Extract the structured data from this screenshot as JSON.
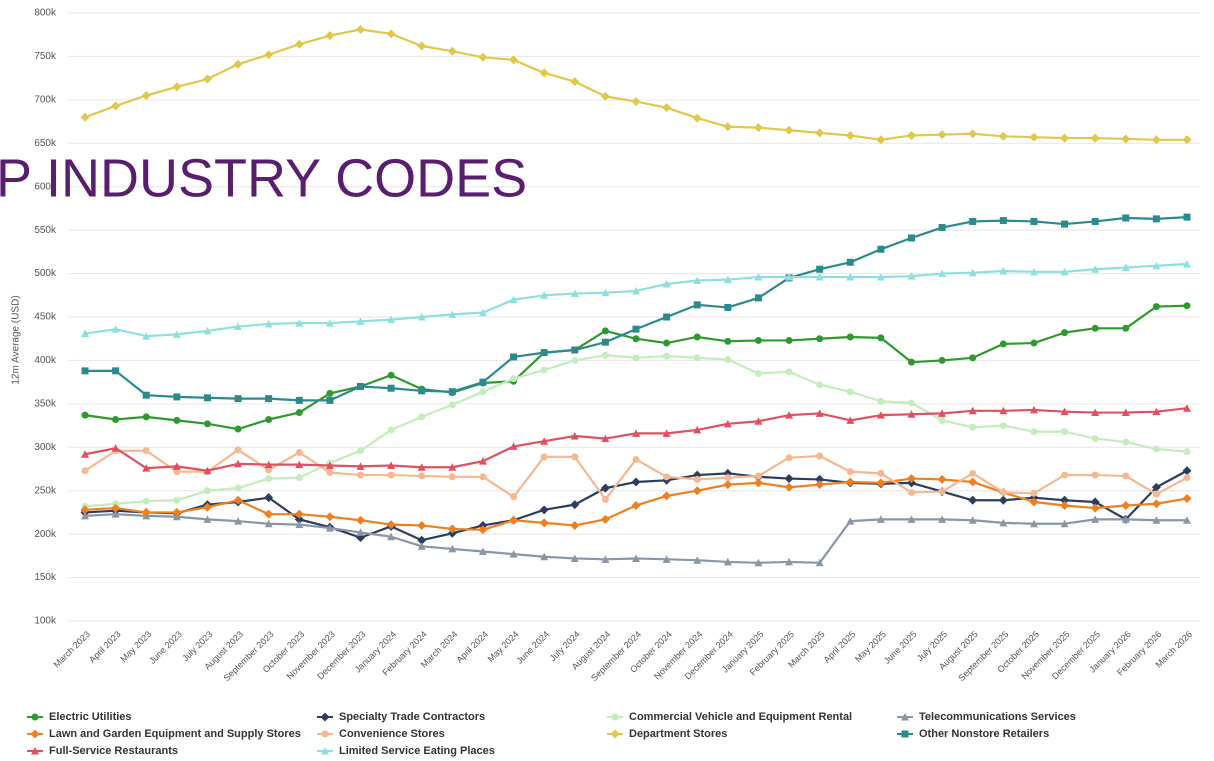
{
  "chart_data": {
    "type": "line",
    "overlay_text": "P INDUSTRY CODES",
    "y_axis_label": "12m Average (USD)",
    "categories": [
      "March 2023",
      "April 2023",
      "May 2023",
      "June 2023",
      "July 2023",
      "August 2023",
      "September 2023",
      "October 2023",
      "November 2023",
      "December 2023",
      "January 2024",
      "February 2024",
      "March 2024",
      "April 2024",
      "May 2024",
      "June 2024",
      "July 2024",
      "August 2024",
      "September 2024",
      "October 2024",
      "November 2024",
      "December 2024",
      "January 2025",
      "February 2025",
      "March 2025",
      "April 2025",
      "May 2025",
      "June 2025",
      "July 2025",
      "August 2025",
      "September 2025",
      "October 2025",
      "November 2025",
      "December 2025",
      "January 2026",
      "February 2026",
      "March 2026"
    ],
    "ylim": [
      100000,
      800000
    ],
    "yticks": [
      {
        "value": 100000,
        "label": "100k"
      },
      {
        "value": 150000,
        "label": "150k"
      },
      {
        "value": 200000,
        "label": "200k"
      },
      {
        "value": 250000,
        "label": "250k"
      },
      {
        "value": 300000,
        "label": "300k"
      },
      {
        "value": 350000,
        "label": "350k"
      },
      {
        "value": 400000,
        "label": "400k"
      },
      {
        "value": 450000,
        "label": "450k"
      },
      {
        "value": 500000,
        "label": "500k"
      },
      {
        "value": 550000,
        "label": "550k"
      },
      {
        "value": 600000,
        "label": "600k"
      },
      {
        "value": 650000,
        "label": "650k"
      },
      {
        "value": 700000,
        "label": "700k"
      },
      {
        "value": 750000,
        "label": "750k"
      },
      {
        "value": 800000,
        "label": "800k"
      }
    ],
    "grid": true,
    "legend": "bottom",
    "series": [
      {
        "name": "Electric Utilities",
        "color": "#2e9a2e",
        "marker": "circle",
        "values": [
          337000,
          332000,
          335000,
          331000,
          327000,
          321000,
          332000,
          340000,
          362000,
          370000,
          383000,
          367000,
          363000,
          374000,
          376000,
          409000,
          412000,
          434000,
          425000,
          420000,
          427000,
          422000,
          423000,
          423000,
          425000,
          427000,
          426000,
          398000,
          400000,
          403000,
          419000,
          420000,
          432000,
          437000,
          437000,
          462000,
          463000
        ]
      },
      {
        "name": "Specialty Trade Contractors",
        "color": "#2c3e60",
        "marker": "diamond",
        "values": [
          225000,
          227000,
          225000,
          224000,
          234000,
          237000,
          242000,
          217000,
          208000,
          196000,
          209000,
          193000,
          201000,
          210000,
          216000,
          228000,
          234000,
          253000,
          260000,
          262000,
          268000,
          270000,
          266000,
          264000,
          263000,
          259000,
          258000,
          259000,
          249000,
          239000,
          239000,
          242000,
          239000,
          237000,
          217000,
          254000,
          273000
        ]
      },
      {
        "name": "Commercial Vehicle and Equipment Rental",
        "color": "#c4ecbc",
        "marker": "circle",
        "values": [
          232000,
          235000,
          238000,
          239000,
          250000,
          253000,
          264000,
          265000,
          282000,
          296000,
          320000,
          335000,
          349000,
          364000,
          379000,
          389000,
          400000,
          406000,
          403000,
          405000,
          403000,
          401000,
          385000,
          387000,
          372000,
          364000,
          353000,
          351000,
          331000,
          323000,
          325000,
          318000,
          318000,
          310000,
          306000,
          298000,
          295000
        ]
      },
      {
        "name": "Telecommunications Services",
        "color": "#8896a8",
        "marker": "triangle",
        "values": [
          221000,
          223000,
          221000,
          220000,
          217000,
          215000,
          212000,
          211000,
          207000,
          202000,
          197000,
          186000,
          183000,
          180000,
          177000,
          174000,
          172000,
          171000,
          172000,
          171000,
          170000,
          168000,
          167000,
          168000,
          167000,
          215000,
          217000,
          217000,
          217000,
          216000,
          213000,
          212000,
          212000,
          217000,
          217000,
          216000,
          216000
        ]
      },
      {
        "name": "Lawn and Garden Equipment and Supply Stores",
        "color": "#f07f20",
        "marker": "diamond",
        "values": [
          228000,
          230000,
          225000,
          225000,
          231000,
          239000,
          223000,
          223000,
          220000,
          216000,
          211000,
          210000,
          206000,
          205000,
          216000,
          213000,
          210000,
          217000,
          233000,
          244000,
          250000,
          257000,
          259000,
          254000,
          257000,
          260000,
          259000,
          264000,
          263000,
          260000,
          248000,
          237000,
          233000,
          230000,
          233000,
          235000,
          241000
        ]
      },
      {
        "name": "Convenience Stores",
        "color": "#f5b890",
        "marker": "circle",
        "values": [
          273000,
          296000,
          296000,
          272000,
          272000,
          297000,
          274000,
          294000,
          271000,
          268000,
          268000,
          267000,
          266000,
          266000,
          243000,
          289000,
          289000,
          240000,
          286000,
          266000,
          263000,
          265000,
          267000,
          288000,
          290000,
          272000,
          270000,
          248000,
          249000,
          270000,
          248000,
          247000,
          268000,
          268000,
          267000,
          246000,
          265000
        ]
      },
      {
        "name": "Department Stores",
        "color": "#e0c84a",
        "marker": "diamond",
        "values": [
          680000,
          693000,
          705000,
          715000,
          724000,
          741000,
          752000,
          764000,
          774000,
          781000,
          776000,
          762000,
          756000,
          749000,
          746000,
          731000,
          721000,
          704000,
          698000,
          691000,
          679000,
          669000,
          668000,
          665000,
          662000,
          659000,
          654000,
          659000,
          660000,
          661000,
          658000,
          657000,
          656000,
          656000,
          655000,
          654000,
          654000
        ]
      },
      {
        "name": "Other Nonstore Retailers",
        "color": "#2a8a8e",
        "marker": "square",
        "values": [
          388000,
          388000,
          360000,
          358000,
          357000,
          356000,
          356000,
          354000,
          354000,
          370000,
          368000,
          365000,
          364000,
          375000,
          404000,
          409000,
          412000,
          421000,
          436000,
          450000,
          464000,
          461000,
          472000,
          495000,
          505000,
          513000,
          528000,
          541000,
          553000,
          560000,
          561000,
          560000,
          557000,
          560000,
          564000,
          563000,
          565000
        ]
      },
      {
        "name": "Full-Service Restaurants",
        "color": "#e05060",
        "marker": "triangle",
        "values": [
          292000,
          299000,
          276000,
          278000,
          273000,
          281000,
          280000,
          280000,
          279000,
          278000,
          279000,
          277000,
          277000,
          284000,
          301000,
          307000,
          313000,
          310000,
          316000,
          316000,
          320000,
          327000,
          330000,
          337000,
          339000,
          331000,
          337000,
          338000,
          339000,
          342000,
          342000,
          343000,
          341000,
          340000,
          340000,
          341000,
          345000
        ]
      },
      {
        "name": "Limited Service Eating Places",
        "color": "#8ee0e0",
        "marker": "triangle",
        "values": [
          431000,
          436000,
          428000,
          430000,
          434000,
          439000,
          442000,
          443000,
          443000,
          445000,
          447000,
          450000,
          453000,
          455000,
          470000,
          475000,
          477000,
          478000,
          480000,
          488000,
          492000,
          493000,
          496000,
          496000,
          496000,
          496000,
          496000,
          497000,
          500000,
          501000,
          503000,
          502000,
          502000,
          505000,
          507000,
          509000,
          511000
        ]
      }
    ]
  }
}
